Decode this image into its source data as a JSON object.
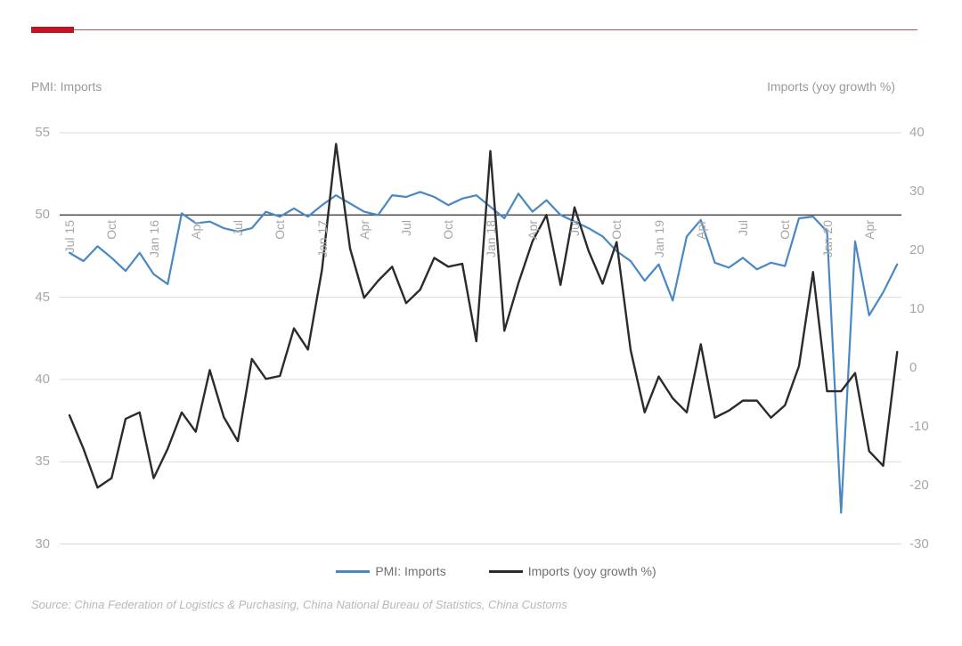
{
  "header": {
    "left_label": "PMI: Imports",
    "right_label": "Imports (yoy growth %)"
  },
  "accent": {
    "bar_color": "#c01425",
    "rule_color": "#c4544e"
  },
  "colors": {
    "grid": "#d9d9d9",
    "axis_cross_line": "#555555",
    "tick_text": "#a6a6a6",
    "header_text": "#999999",
    "legend_text": "#707070",
    "source_text": "#b8b8b8",
    "pmi_line": "#4a87c3",
    "growth_line": "#2b2b2b"
  },
  "chart_data": {
    "type": "line",
    "title": "",
    "n_points": 60,
    "x_tick_labels": [
      "Jul 15",
      "Oct",
      "Jan 16",
      "Apr",
      "Jul",
      "Oct",
      "Jan 17",
      "Apr",
      "Jul",
      "Oct",
      "Jan 18",
      "Apr",
      "Jul",
      "Oct",
      "Jan 19",
      "Apr",
      "Jul",
      "Oct",
      "Jan 20",
      "Apr"
    ],
    "x_tick_indices": [
      0,
      3,
      6,
      9,
      12,
      15,
      18,
      21,
      24,
      27,
      30,
      33,
      36,
      39,
      42,
      45,
      48,
      51,
      54,
      57
    ],
    "left_axis": {
      "label": "PMI: Imports",
      "min": 30,
      "max": 55,
      "ticks": [
        55,
        50,
        45,
        40,
        35,
        30
      ]
    },
    "right_axis": {
      "label": "Imports (yoy growth %)",
      "min": -30,
      "max": 40,
      "ticks": [
        40,
        30,
        20,
        10,
        0,
        -10,
        -20,
        -30
      ]
    },
    "axis_cross_left_value": 50,
    "grid": true,
    "legend_position": "bottom",
    "series": [
      {
        "name": "PMI: Imports",
        "axis": "left",
        "color": "#4a87c3",
        "values": [
          47.7,
          47.2,
          48.1,
          47.4,
          46.6,
          47.7,
          46.4,
          45.8,
          50.1,
          49.5,
          49.6,
          49.2,
          49.0,
          49.2,
          50.2,
          49.9,
          50.4,
          49.9,
          50.6,
          51.2,
          50.7,
          50.2,
          50.0,
          51.2,
          51.1,
          51.4,
          51.1,
          50.6,
          51.0,
          51.2,
          50.5,
          49.8,
          51.3,
          50.2,
          50.9,
          50.0,
          49.6,
          49.2,
          48.7,
          47.8,
          47.2,
          46.0,
          47.0,
          44.8,
          48.7,
          49.7,
          47.1,
          46.8,
          47.4,
          46.7,
          47.1,
          46.9,
          49.8,
          49.9,
          49.0,
          31.9,
          48.4,
          43.9,
          45.3,
          47.0
        ]
      },
      {
        "name": "Imports (yoy growth %)",
        "axis": "right",
        "color": "#2b2b2b",
        "values": [
          -8.1,
          -13.8,
          -20.4,
          -18.8,
          -8.7,
          -7.6,
          -18.8,
          -13.8,
          -7.6,
          -10.9,
          -0.4,
          -8.4,
          -12.5,
          1.5,
          -1.9,
          -1.4,
          6.7,
          3.1,
          16.7,
          38.1,
          20.3,
          11.9,
          14.8,
          17.2,
          11.0,
          13.3,
          18.7,
          17.2,
          17.7,
          4.5,
          36.9,
          6.3,
          14.4,
          21.5,
          26.0,
          14.1,
          27.3,
          19.9,
          14.3,
          21.4,
          3.0,
          -7.6,
          -1.5,
          -5.2,
          -7.6,
          4.0,
          -8.5,
          -7.3,
          -5.6,
          -5.6,
          -8.5,
          -6.4,
          0.3,
          16.3,
          -4.0,
          -4.0,
          -0.9,
          -14.2,
          -16.7,
          2.7
        ]
      }
    ]
  },
  "source": "Source: China Federation of Logistics & Purchasing, China National Bureau of Statistics, China Customs"
}
